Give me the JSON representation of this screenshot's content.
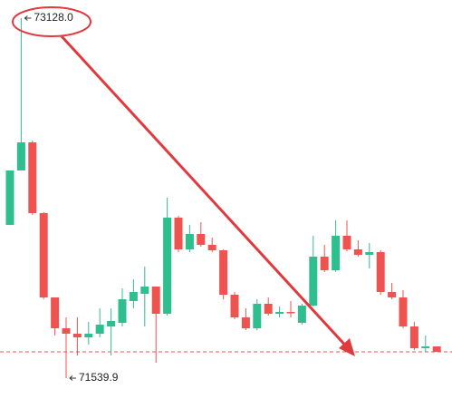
{
  "chart_data": {
    "type": "candlestick",
    "up_color": "#2fbf8f",
    "down_color": "#ef5350",
    "ylim": [
      71448,
      73208
    ],
    "open": [
      72216,
      72456,
      72580,
      72268,
      71896,
      71760,
      71736,
      71720,
      71736,
      71768,
      71784,
      71880,
      71912,
      71944,
      71824,
      72248,
      72108,
      72176,
      72128,
      72104,
      71908,
      71808,
      71760,
      71868,
      71824,
      71832,
      71784,
      71860,
      72076,
      72016,
      72168,
      72108,
      72084,
      72096,
      71920,
      71896,
      71768,
      71672,
      71680
    ],
    "high": [
      72456,
      73128,
      72588,
      72272,
      71896,
      71808,
      71808,
      71788,
      71848,
      71848,
      71936,
      71976,
      72032,
      71944,
      72336,
      72256,
      72216,
      72228,
      72160,
      72108,
      71920,
      71848,
      71888,
      71896,
      71856,
      71880,
      71868,
      72168,
      72128,
      72236,
      72236,
      72148,
      72136,
      72104,
      71960,
      71928,
      71788,
      71728,
      71680
    ],
    "low": [
      72216,
      72456,
      72260,
      71888,
      71728,
      71539.9,
      71640,
      71688,
      71720,
      71640,
      71768,
      71848,
      71768,
      71608,
      71816,
      72096,
      72096,
      72120,
      72096,
      71888,
      71800,
      71752,
      71752,
      71816,
      71808,
      71808,
      71776,
      71856,
      72008,
      72008,
      72100,
      72076,
      72024,
      71908,
      71888,
      71760,
      71664,
      71656,
      71656
    ],
    "close": [
      72456,
      72580,
      72268,
      71896,
      71760,
      71736,
      71720,
      71736,
      71776,
      71792,
      71888,
      71920,
      71944,
      71824,
      72248,
      72108,
      72176,
      72128,
      72104,
      71908,
      71808,
      71760,
      71868,
      71824,
      71832,
      71826,
      71860,
      72076,
      72016,
      72168,
      72108,
      72084,
      72096,
      71920,
      71896,
      71768,
      71672,
      71680,
      71656
    ],
    "high_label": {
      "value": 73128,
      "label": "73128.0"
    },
    "low_label": {
      "value": 71539.9,
      "label": "71539.9"
    },
    "last_price_line": true
  }
}
